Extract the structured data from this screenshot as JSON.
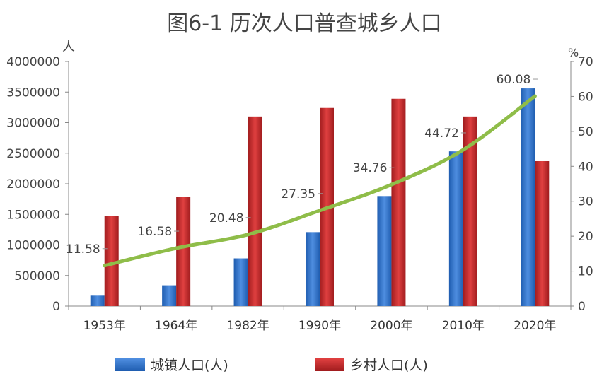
{
  "chart_data": {
    "type": "bar",
    "title": "图6-1  历次人口普查城乡人口",
    "ylabel": "人",
    "y2label": "%",
    "categories": [
      "1953年",
      "1964年",
      "1982年",
      "1990年",
      "2000年",
      "2010年",
      "2020年"
    ],
    "ylim": [
      0,
      4000000
    ],
    "yticks": [
      0,
      500000,
      1000000,
      1500000,
      2000000,
      2500000,
      3000000,
      3500000,
      4000000
    ],
    "y2lim": [
      0,
      70
    ],
    "y2ticks": [
      0,
      10,
      20,
      30,
      40,
      50,
      60,
      70
    ],
    "series": [
      {
        "name": "城镇人口(人)",
        "type": "bar",
        "axis": "left",
        "color": "#2f6fc8",
        "values": [
          170000,
          340000,
          780000,
          1210000,
          1800000,
          2530000,
          3560000
        ]
      },
      {
        "name": "乡村人口(人)",
        "type": "bar",
        "axis": "left",
        "color": "#c0282a",
        "values": [
          1470000,
          1790000,
          3100000,
          3240000,
          3390000,
          3100000,
          2370000
        ]
      },
      {
        "type": "line",
        "axis": "right",
        "color": "#8fbd49",
        "values": [
          11.58,
          16.58,
          20.48,
          27.35,
          34.76,
          44.72,
          60.08
        ],
        "labels": [
          "11.58",
          "16.58",
          "20.48",
          "27.35",
          "34.76",
          "44.72",
          "60.08"
        ]
      }
    ],
    "grid": false,
    "legend": "bottom"
  }
}
